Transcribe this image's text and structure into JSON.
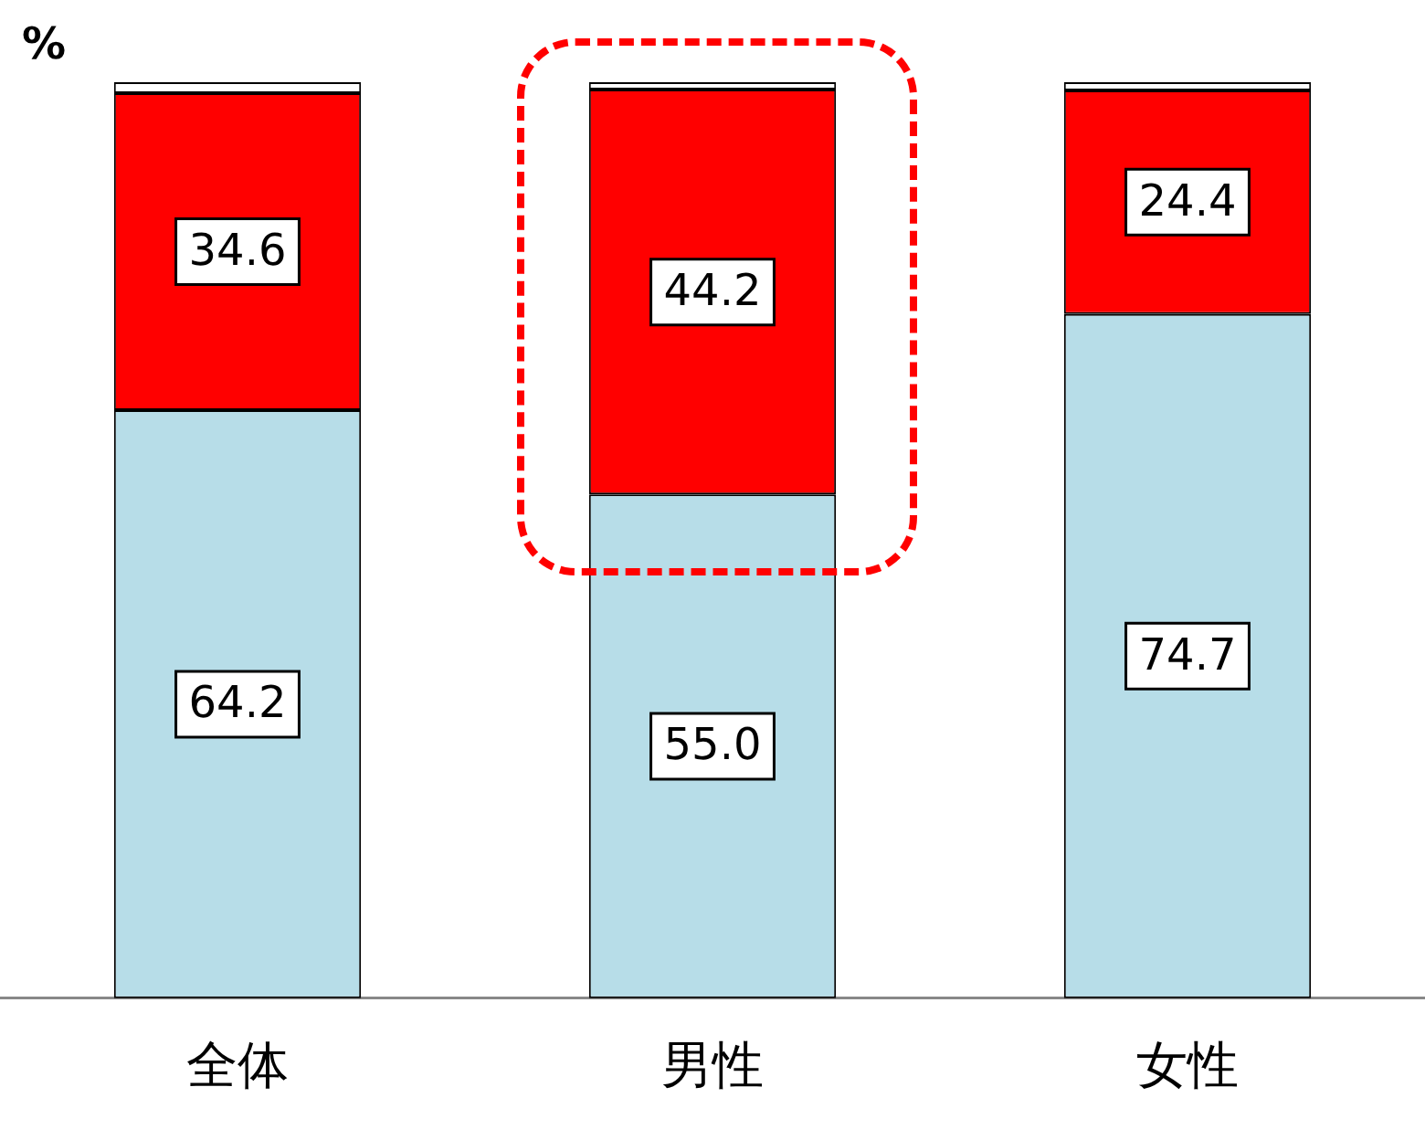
{
  "chart_data": {
    "type": "bar",
    "ylabel": "%",
    "categories": [
      "全体",
      "男性",
      "女性"
    ],
    "stacked": true,
    "ylim": [
      0,
      100
    ],
    "tick_labels": "x",
    "grid": false,
    "legend": false,
    "series": [
      {
        "color": "#b7dde8",
        "values": [
          64.2,
          55.0,
          74.7
        ],
        "value_labels": [
          "64.2",
          "55.0",
          "74.7"
        ]
      },
      {
        "color": "#ff0000",
        "values": [
          34.6,
          44.2,
          24.4
        ],
        "value_labels": [
          "34.6",
          "44.2",
          "24.4"
        ]
      },
      {
        "color": "#ffffff",
        "values": [
          1.2,
          0.8,
          0.9
        ],
        "value_labels": [
          null,
          null,
          null
        ]
      }
    ]
  }
}
